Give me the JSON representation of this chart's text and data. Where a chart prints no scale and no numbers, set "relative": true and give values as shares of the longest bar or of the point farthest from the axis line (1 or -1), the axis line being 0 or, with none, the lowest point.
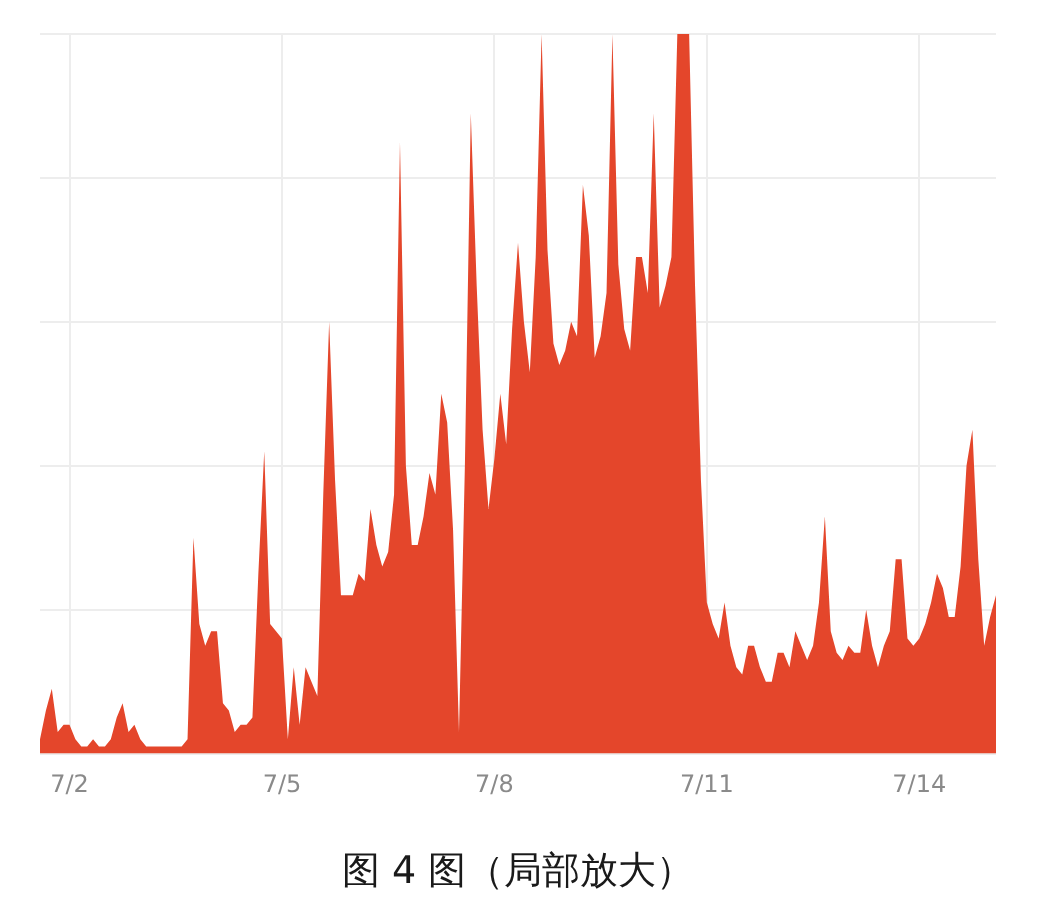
{
  "chart_data": {
    "type": "area",
    "title": "图 4 图（局部放大）",
    "relative": true,
    "grid": true,
    "categories": [
      null,
      null,
      null,
      null,
      null,
      "7/2",
      null,
      null,
      null,
      null,
      null,
      null,
      null,
      null,
      null,
      null,
      null,
      null,
      null,
      null,
      null,
      null,
      null,
      null,
      null,
      null,
      null,
      null,
      null,
      null,
      null,
      null,
      null,
      null,
      null,
      null,
      null,
      null,
      null,
      null,
      null,
      "7/5",
      null,
      null,
      null,
      null,
      null,
      null,
      null,
      null,
      null,
      null,
      null,
      null,
      null,
      null,
      null,
      null,
      null,
      null,
      null,
      null,
      null,
      null,
      null,
      null,
      null,
      null,
      null,
      null,
      null,
      null,
      null,
      null,
      null,
      null,
      null,
      "7/8",
      null,
      null,
      null,
      null,
      null,
      null,
      null,
      null,
      null,
      null,
      null,
      null,
      null,
      null,
      null,
      null,
      null,
      null,
      null,
      null,
      null,
      null,
      null,
      null,
      null,
      null,
      null,
      null,
      null,
      null,
      null,
      null,
      null,
      null,
      null,
      "7/11",
      null,
      null,
      null,
      null,
      null,
      null,
      null,
      null,
      null,
      null,
      null,
      null,
      null,
      null,
      null,
      null,
      null,
      null,
      null,
      null,
      null,
      null,
      null,
      null,
      null,
      null,
      null,
      null,
      null,
      null,
      null,
      null,
      null,
      null,
      null,
      "7/14",
      null,
      null,
      null,
      null,
      null,
      null,
      null,
      null,
      null,
      null,
      null,
      null,
      null
    ],
    "series": [
      {
        "color": "#e4462b",
        "values": [
          0.02,
          0.06,
          0.09,
          0.03,
          0.04,
          0.04,
          0.02,
          0.01,
          0.01,
          0.02,
          0.01,
          0.01,
          0.02,
          0.05,
          0.07,
          0.03,
          0.04,
          0.02,
          0.01,
          0.01,
          0.01,
          0.01,
          0.01,
          0.01,
          0.01,
          0.02,
          0.3,
          0.18,
          0.15,
          0.17,
          0.17,
          0.07,
          0.06,
          0.03,
          0.04,
          0.04,
          0.05,
          0.25,
          0.42,
          0.18,
          0.17,
          0.16,
          0.02,
          0.12,
          0.04,
          0.12,
          0.1,
          0.08,
          0.36,
          0.6,
          0.38,
          0.22,
          0.22,
          0.22,
          0.25,
          0.24,
          0.34,
          0.29,
          0.26,
          0.28,
          0.36,
          0.85,
          0.4,
          0.29,
          0.29,
          0.33,
          0.39,
          0.36,
          0.5,
          0.46,
          0.31,
          0.03,
          0.4,
          0.89,
          0.65,
          0.45,
          0.34,
          0.41,
          0.5,
          0.43,
          0.59,
          0.71,
          0.6,
          0.53,
          0.69,
          1.0,
          0.7,
          0.57,
          0.54,
          0.56,
          0.6,
          0.58,
          0.79,
          0.72,
          0.55,
          0.58,
          0.64,
          1.0,
          0.68,
          0.59,
          0.56,
          0.69,
          0.69,
          0.64,
          0.89,
          0.62,
          0.65,
          0.69,
          1.0,
          1.0,
          1.0,
          0.65,
          0.38,
          0.21,
          0.18,
          0.16,
          0.21,
          0.15,
          0.12,
          0.11,
          0.15,
          0.15,
          0.12,
          0.1,
          0.1,
          0.14,
          0.14,
          0.12,
          0.17,
          0.15,
          0.13,
          0.15,
          0.21,
          0.33,
          0.17,
          0.14,
          0.13,
          0.15,
          0.14,
          0.14,
          0.2,
          0.15,
          0.12,
          0.15,
          0.17,
          0.27,
          0.27,
          0.16,
          0.15,
          0.16,
          0.18,
          0.21,
          0.25,
          0.23,
          0.19,
          0.19,
          0.26,
          0.4,
          0.45,
          0.27,
          0.15,
          0.19,
          0.22
        ]
      }
    ]
  }
}
